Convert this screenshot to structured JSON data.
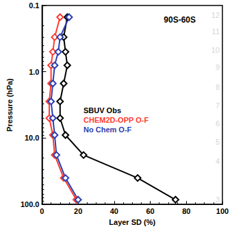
{
  "chart_data": {
    "type": "line",
    "title": "90S-60S",
    "x_label": "Layer SD (%)",
    "y_label": "Pressure (hPa)",
    "log": "y",
    "legend": "center",
    "xlim": [
      0,
      100
    ],
    "xticks": [
      0,
      20,
      40,
      60,
      80,
      100
    ],
    "ylim": [
      0.1,
      100
    ],
    "yticks": [
      {
        "value": 0.1,
        "label": "0.1"
      },
      {
        "value": 1,
        "label": "1.0"
      },
      {
        "value": 10,
        "label": "10.0"
      },
      {
        "value": 100,
        "label": "100.0"
      }
    ],
    "y": [
      0.15,
      0.3,
      0.5,
      0.8,
      1.5,
      2.8,
      5,
      9,
      18,
      40,
      85
    ],
    "series": [
      {
        "name": "SBUV Obs",
        "color": "#000000",
        "marker": "diamond",
        "values": [
          14,
          12,
          13,
          14,
          12,
          10,
          10,
          13,
          23,
          53,
          74
        ]
      },
      {
        "name": "CHEM2D-OPP O-F",
        "color": "#ff3b30",
        "marker": "diamond",
        "values": [
          10,
          7,
          6,
          5,
          5,
          4,
          4,
          6,
          7,
          12,
          19
        ]
      },
      {
        "name": "No Chem O-F",
        "color": "#2b3fb0",
        "marker": "diamond",
        "values": [
          15,
          10,
          9,
          7,
          6,
          5,
          6,
          7,
          8,
          13,
          20
        ]
      }
    ],
    "annotations": [
      {
        "text": "12",
        "y": 0.14
      },
      {
        "text": "11",
        "y": 0.25
      },
      {
        "text": "10",
        "y": 0.47
      },
      {
        "text": "9",
        "y": 0.85
      },
      {
        "text": "8",
        "y": 1.7
      },
      {
        "text": "7",
        "y": 3.2
      },
      {
        "text": "6",
        "y": 6
      },
      {
        "text": "5",
        "y": 11.5
      },
      {
        "text": "4",
        "y": 22
      },
      {
        "text": "3",
        "y": 85
      }
    ]
  }
}
